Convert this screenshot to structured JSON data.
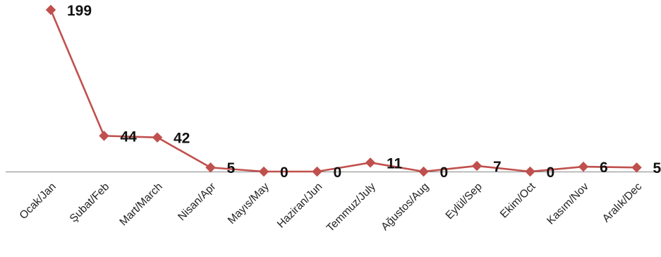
{
  "chart_data": {
    "type": "line",
    "categories": [
      "Ocak/Jan",
      "Şubat/Feb",
      "Mart/March",
      "Nisan/Apr",
      "Mayıs/May",
      "Haziran/Jun",
      "Temmuz/July",
      "Ağustos/Aug",
      "Eylül/Sep",
      "Ekim/Oct",
      "Kasım/Nov",
      "Aralık/Dec"
    ],
    "series": [
      {
        "values": [
          199,
          44,
          42,
          5,
          0,
          0,
          11,
          0,
          7,
          0,
          6,
          5
        ],
        "color": "#c0504d",
        "marker": "diamond"
      }
    ],
    "data_labels": [
      "199",
      "44",
      "42",
      "5",
      "0",
      "0",
      "11",
      "0",
      "7",
      "0",
      "6",
      "5"
    ],
    "ylim": [
      0,
      199
    ],
    "grid": false,
    "legend": "none",
    "title": "",
    "xlabel": "",
    "ylabel": ""
  }
}
